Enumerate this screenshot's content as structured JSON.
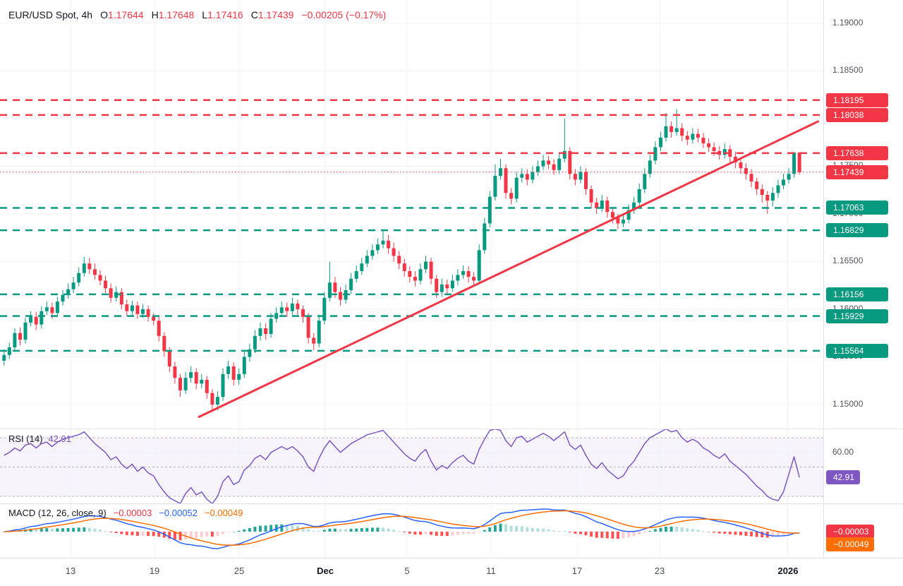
{
  "header": {
    "symbol": "EUR/USD Spot, 4h",
    "ohlc": [
      {
        "k": "O",
        "v": "1.17644"
      },
      {
        "k": "H",
        "v": "1.17648"
      },
      {
        "k": "L",
        "v": "1.17416"
      },
      {
        "k": "C",
        "v": "1.17439"
      }
    ],
    "change": "−0.00205 (−0.17%)"
  },
  "rsi_header": {
    "label": "RSI (14)",
    "value": "42.91"
  },
  "macd_header": {
    "label": "MACD (12, 26, close, 9)",
    "hist": "−0.00003",
    "macd": "−0.00052",
    "signal": "−0.00049"
  },
  "colors": {
    "up": "#089981",
    "down": "#F23645",
    "resistance": "#F23645",
    "support": "#089981",
    "trendline": "#F23645",
    "rsi": "#7E57C2",
    "macd": "#2962FF",
    "signal": "#FF6D00",
    "hist_up": "#26A69A",
    "hist_up_weak": "#B2DFDB",
    "hist_down": "#FF5252",
    "hist_down_weak": "#FFCDD2",
    "grid": "#F0F3FA",
    "band_line": "#9598A1"
  },
  "chart_data": {
    "type": "candlestick",
    "title": "EUR/USD Spot, 4h",
    "price_axis": {
      "grid": [
        1.19,
        1.185,
        1.18,
        1.175,
        1.17,
        1.165,
        1.16,
        1.155,
        1.15
      ],
      "labels": [
        {
          "text": "1.19000",
          "price": 1.19
        },
        {
          "text": "1.18500",
          "price": 1.185
        },
        {
          "text": "1.18000",
          "price": 1.18
        },
        {
          "text": "1.17500",
          "price": 1.175
        },
        {
          "text": "1.17000",
          "price": 1.17
        },
        {
          "text": "1.16500",
          "price": 1.165
        },
        {
          "text": "1.16000",
          "price": 1.16
        },
        {
          "text": "1.15500",
          "price": 1.155
        },
        {
          "text": "1.15000",
          "price": 1.15
        }
      ]
    },
    "levels": [
      {
        "text": "1.18195",
        "price": 1.18195,
        "type": "resistance"
      },
      {
        "text": "1.18038",
        "price": 1.18038,
        "type": "resistance"
      },
      {
        "text": "1.17638",
        "price": 1.17638,
        "type": "resistance"
      },
      {
        "text": "1.17439",
        "price": 1.17439,
        "type": "last-price"
      },
      {
        "text": "1.17063",
        "price": 1.17063,
        "type": "support"
      },
      {
        "text": "1.16829",
        "price": 1.16829,
        "type": "support"
      },
      {
        "text": "1.16156",
        "price": 1.16156,
        "type": "support"
      },
      {
        "text": "1.15929",
        "price": 1.15929,
        "type": "support"
      },
      {
        "text": "1.15564",
        "price": 1.15564,
        "type": "support"
      }
    ],
    "trendline": {
      "x1_index": 36.5,
      "price1": 1.1487,
      "x2_index": 152.5,
      "price2": 1.1797
    },
    "time_axis": [
      {
        "text": "13",
        "index": 12.5,
        "bold": false
      },
      {
        "text": "19",
        "index": 28.2,
        "bold": false
      },
      {
        "text": "25",
        "index": 44.0,
        "bold": false
      },
      {
        "text": "Dec",
        "index": 60.1,
        "bold": true
      },
      {
        "text": "5",
        "index": 75.5,
        "bold": false
      },
      {
        "text": "11",
        "index": 91.2,
        "bold": false
      },
      {
        "text": "17",
        "index": 107.4,
        "bold": false
      },
      {
        "text": "23",
        "index": 122.8,
        "bold": false
      },
      {
        "text": "2026",
        "index": 146.8,
        "bold": true
      }
    ],
    "candles": [
      [
        1.1546,
        1.1558,
        1.1541,
        1.1552
      ],
      [
        1.1552,
        1.1565,
        1.1548,
        1.156
      ],
      [
        1.156,
        1.158,
        1.1556,
        1.1575
      ],
      [
        1.1575,
        1.1581,
        1.1562,
        1.1568
      ],
      [
        1.1568,
        1.1591,
        1.1564,
        1.1586
      ],
      [
        1.1586,
        1.1598,
        1.1582,
        1.1592
      ],
      [
        1.1592,
        1.1597,
        1.1578,
        1.1584
      ],
      [
        1.1584,
        1.1603,
        1.158,
        1.1598
      ],
      [
        1.1598,
        1.1608,
        1.1594,
        1.1602
      ],
      [
        1.1602,
        1.1607,
        1.159,
        1.1596
      ],
      [
        1.1596,
        1.1613,
        1.1592,
        1.1608
      ],
      [
        1.1608,
        1.162,
        1.1604,
        1.1615
      ],
      [
        1.1615,
        1.1627,
        1.1611,
        1.1621
      ],
      [
        1.1621,
        1.1634,
        1.1617,
        1.1628
      ],
      [
        1.1628,
        1.1644,
        1.1624,
        1.1638
      ],
      [
        1.1638,
        1.1655,
        1.1634,
        1.1648
      ],
      [
        1.1648,
        1.1654,
        1.1637,
        1.1642
      ],
      [
        1.1642,
        1.1648,
        1.1631,
        1.1636
      ],
      [
        1.1636,
        1.1641,
        1.1625,
        1.163
      ],
      [
        1.163,
        1.1635,
        1.1617,
        1.1622
      ],
      [
        1.1622,
        1.1627,
        1.1607,
        1.1612
      ],
      [
        1.1612,
        1.1624,
        1.1608,
        1.1618
      ],
      [
        1.1618,
        1.1622,
        1.16,
        1.1605
      ],
      [
        1.1605,
        1.161,
        1.1593,
        1.1598
      ],
      [
        1.1598,
        1.1609,
        1.1594,
        1.1604
      ],
      [
        1.1604,
        1.1608,
        1.159,
        1.1595
      ],
      [
        1.1595,
        1.1605,
        1.1591,
        1.16
      ],
      [
        1.16,
        1.1604,
        1.1587,
        1.1592
      ],
      [
        1.1592,
        1.1596,
        1.1583,
        1.1588
      ],
      [
        1.1588,
        1.1592,
        1.1566,
        1.1572
      ],
      [
        1.1572,
        1.1576,
        1.155,
        1.1556
      ],
      [
        1.1556,
        1.156,
        1.1534,
        1.154
      ],
      [
        1.154,
        1.1545,
        1.1522,
        1.1528
      ],
      [
        1.1528,
        1.1532,
        1.1508,
        1.1515
      ],
      [
        1.1515,
        1.1534,
        1.1511,
        1.1528
      ],
      [
        1.1528,
        1.154,
        1.1523,
        1.1534
      ],
      [
        1.1534,
        1.1538,
        1.1516,
        1.1522
      ],
      [
        1.1522,
        1.1532,
        1.1517,
        1.1526
      ],
      [
        1.1526,
        1.153,
        1.1506,
        1.1512
      ],
      [
        1.1512,
        1.1516,
        1.1492,
        1.15
      ],
      [
        1.15,
        1.1514,
        1.1494,
        1.1508
      ],
      [
        1.1508,
        1.1538,
        1.1504,
        1.1532
      ],
      [
        1.1532,
        1.1546,
        1.1527,
        1.154
      ],
      [
        1.154,
        1.1544,
        1.152,
        1.1526
      ],
      [
        1.1526,
        1.1538,
        1.1521,
        1.1532
      ],
      [
        1.1532,
        1.1556,
        1.1528,
        1.155
      ],
      [
        1.155,
        1.1564,
        1.1545,
        1.1558
      ],
      [
        1.1558,
        1.1578,
        1.1554,
        1.1572
      ],
      [
        1.1572,
        1.1586,
        1.1567,
        1.158
      ],
      [
        1.158,
        1.1585,
        1.1568,
        1.1574
      ],
      [
        1.1574,
        1.1596,
        1.157,
        1.159
      ],
      [
        1.159,
        1.1602,
        1.1586,
        1.1596
      ],
      [
        1.1596,
        1.1608,
        1.1592,
        1.1602
      ],
      [
        1.1602,
        1.1607,
        1.1592,
        1.1598
      ],
      [
        1.1598,
        1.1612,
        1.1594,
        1.1606
      ],
      [
        1.1606,
        1.161,
        1.1594,
        1.16
      ],
      [
        1.16,
        1.1604,
        1.1586,
        1.1592
      ],
      [
        1.1592,
        1.1596,
        1.1564,
        1.157
      ],
      [
        1.157,
        1.1575,
        1.1557,
        1.1564
      ],
      [
        1.1564,
        1.1594,
        1.156,
        1.1588
      ],
      [
        1.1588,
        1.1618,
        1.1584,
        1.1612
      ],
      [
        1.1612,
        1.165,
        1.1608,
        1.1628
      ],
      [
        1.1628,
        1.1634,
        1.1612,
        1.1618
      ],
      [
        1.1618,
        1.1623,
        1.1604,
        1.161
      ],
      [
        1.161,
        1.1626,
        1.1606,
        1.162
      ],
      [
        1.162,
        1.1638,
        1.1616,
        1.1632
      ],
      [
        1.1632,
        1.1646,
        1.1628,
        1.164
      ],
      [
        1.164,
        1.1654,
        1.1636,
        1.1648
      ],
      [
        1.1648,
        1.1662,
        1.1644,
        1.1656
      ],
      [
        1.1656,
        1.1668,
        1.1652,
        1.1662
      ],
      [
        1.1662,
        1.1674,
        1.1658,
        1.1668
      ],
      [
        1.1668,
        1.1683,
        1.1664,
        1.1672
      ],
      [
        1.1672,
        1.1678,
        1.1658,
        1.1664
      ],
      [
        1.1664,
        1.167,
        1.165,
        1.1656
      ],
      [
        1.1656,
        1.1661,
        1.1642,
        1.1648
      ],
      [
        1.1648,
        1.1653,
        1.1634,
        1.164
      ],
      [
        1.164,
        1.1645,
        1.1628,
        1.1634
      ],
      [
        1.1634,
        1.164,
        1.1624,
        1.163
      ],
      [
        1.163,
        1.1648,
        1.1626,
        1.1642
      ],
      [
        1.1642,
        1.1656,
        1.1638,
        1.165
      ],
      [
        1.165,
        1.1654,
        1.1626,
        1.1632
      ],
      [
        1.1632,
        1.1636,
        1.1612,
        1.1618
      ],
      [
        1.1618,
        1.1632,
        1.1613,
        1.1626
      ],
      [
        1.1626,
        1.1631,
        1.1616,
        1.1622
      ],
      [
        1.1622,
        1.1636,
        1.1618,
        1.163
      ],
      [
        1.163,
        1.1642,
        1.1625,
        1.1636
      ],
      [
        1.1636,
        1.1646,
        1.1632,
        1.164
      ],
      [
        1.164,
        1.1645,
        1.1628,
        1.1634
      ],
      [
        1.1634,
        1.1639,
        1.1624,
        1.163
      ],
      [
        1.163,
        1.1668,
        1.1626,
        1.1662
      ],
      [
        1.1662,
        1.1696,
        1.1658,
        1.169
      ],
      [
        1.169,
        1.1724,
        1.1686,
        1.1718
      ],
      [
        1.1718,
        1.1752,
        1.1714,
        1.174
      ],
      [
        1.174,
        1.1758,
        1.1736,
        1.1748
      ],
      [
        1.1748,
        1.1752,
        1.1716,
        1.1722
      ],
      [
        1.1722,
        1.1727,
        1.171,
        1.1716
      ],
      [
        1.1716,
        1.1744,
        1.1712,
        1.1738
      ],
      [
        1.1738,
        1.1748,
        1.1733,
        1.1742
      ],
      [
        1.1742,
        1.1747,
        1.173,
        1.1736
      ],
      [
        1.1736,
        1.175,
        1.1732,
        1.1744
      ],
      [
        1.1744,
        1.1756,
        1.174,
        1.175
      ],
      [
        1.175,
        1.1762,
        1.1746,
        1.1756
      ],
      [
        1.1756,
        1.1761,
        1.1747,
        1.1752
      ],
      [
        1.1752,
        1.1757,
        1.1741,
        1.1746
      ],
      [
        1.1746,
        1.1764,
        1.1742,
        1.1758
      ],
      [
        1.1758,
        1.18,
        1.1754,
        1.1766
      ],
      [
        1.1766,
        1.177,
        1.1736,
        1.1742
      ],
      [
        1.1742,
        1.1747,
        1.173,
        1.1736
      ],
      [
        1.1736,
        1.175,
        1.1732,
        1.1744
      ],
      [
        1.1744,
        1.1748,
        1.172,
        1.1726
      ],
      [
        1.1726,
        1.173,
        1.1706,
        1.1712
      ],
      [
        1.1712,
        1.1717,
        1.17,
        1.1706
      ],
      [
        1.1706,
        1.172,
        1.1702,
        1.1714
      ],
      [
        1.1714,
        1.1718,
        1.1696,
        1.1702
      ],
      [
        1.1702,
        1.1707,
        1.169,
        1.1696
      ],
      [
        1.1696,
        1.17,
        1.1684,
        1.169
      ],
      [
        1.169,
        1.17,
        1.1686,
        1.1694
      ],
      [
        1.1694,
        1.171,
        1.169,
        1.1704
      ],
      [
        1.1704,
        1.1718,
        1.17,
        1.1712
      ],
      [
        1.1712,
        1.1732,
        1.1708,
        1.1726
      ],
      [
        1.1726,
        1.1748,
        1.1722,
        1.1742
      ],
      [
        1.1742,
        1.1762,
        1.1738,
        1.1756
      ],
      [
        1.1756,
        1.1776,
        1.1752,
        1.177
      ],
      [
        1.177,
        1.1786,
        1.1766,
        1.178
      ],
      [
        1.178,
        1.1806,
        1.1776,
        1.1792
      ],
      [
        1.1792,
        1.1797,
        1.178,
        1.1786
      ],
      [
        1.1786,
        1.181,
        1.1782,
        1.179
      ],
      [
        1.179,
        1.1795,
        1.1776,
        1.1782
      ],
      [
        1.1782,
        1.1787,
        1.1772,
        1.1778
      ],
      [
        1.1778,
        1.179,
        1.1774,
        1.1784
      ],
      [
        1.1784,
        1.1789,
        1.1775,
        1.178
      ],
      [
        1.178,
        1.1785,
        1.1769,
        1.1774
      ],
      [
        1.1774,
        1.1779,
        1.1765,
        1.177
      ],
      [
        1.177,
        1.1775,
        1.1761,
        1.1766
      ],
      [
        1.1766,
        1.1771,
        1.1757,
        1.1762
      ],
      [
        1.1762,
        1.1774,
        1.1758,
        1.1768
      ],
      [
        1.1768,
        1.1772,
        1.1754,
        1.176
      ],
      [
        1.176,
        1.1765,
        1.1748,
        1.1754
      ],
      [
        1.1754,
        1.1759,
        1.1742,
        1.1748
      ],
      [
        1.1748,
        1.1753,
        1.1736,
        1.1742
      ],
      [
        1.1742,
        1.1747,
        1.1728,
        1.1734
      ],
      [
        1.1734,
        1.1738,
        1.172,
        1.1726
      ],
      [
        1.1726,
        1.1731,
        1.1712,
        1.172
      ],
      [
        1.172,
        1.1724,
        1.17,
        1.1714
      ],
      [
        1.1714,
        1.1728,
        1.1708,
        1.1722
      ],
      [
        1.1722,
        1.1736,
        1.1717,
        1.173
      ],
      [
        1.173,
        1.1742,
        1.1726,
        1.1736
      ],
      [
        1.1736,
        1.1748,
        1.1732,
        1.1742
      ],
      [
        1.1742,
        1.1765,
        1.1738,
        1.17644
      ],
      [
        1.17644,
        1.17648,
        1.17416,
        1.17439
      ]
    ],
    "rsi": {
      "period": 14,
      "upper_band": 70,
      "middle_band": 50,
      "lower_band": 30,
      "axis_label": {
        "text": "60.00",
        "value": 60
      },
      "last": 42.91,
      "values": [
        58,
        60,
        63,
        61,
        65,
        66,
        63,
        66,
        67,
        64,
        67,
        69,
        70,
        71,
        72,
        74,
        70,
        66,
        63,
        60,
        55,
        57,
        52,
        49,
        52,
        47,
        50,
        46,
        44,
        38,
        33,
        29,
        27,
        25,
        32,
        36,
        31,
        33,
        28,
        25,
        30,
        40,
        44,
        38,
        40,
        48,
        51,
        56,
        58,
        55,
        60,
        62,
        64,
        62,
        64,
        61,
        57,
        50,
        47,
        56,
        63,
        68,
        64,
        60,
        63,
        66,
        68,
        70,
        72,
        73,
        74,
        75,
        71,
        67,
        63,
        59,
        56,
        54,
        59,
        62,
        54,
        48,
        51,
        49,
        53,
        56,
        58,
        54,
        52,
        62,
        69,
        75,
        76,
        75,
        68,
        64,
        70,
        71,
        67,
        69,
        71,
        73,
        71,
        68,
        71,
        74,
        65,
        62,
        65,
        58,
        52,
        49,
        53,
        48,
        45,
        42,
        44,
        50,
        54,
        60,
        66,
        70,
        72,
        74,
        76,
        74,
        75,
        70,
        67,
        69,
        67,
        63,
        61,
        58,
        56,
        59,
        54,
        51,
        48,
        45,
        41,
        37,
        34,
        30,
        28,
        27,
        33,
        45,
        57,
        42.91
      ]
    },
    "macd": {
      "fast": 12,
      "slow": 26,
      "source": "close",
      "smoothing": 9,
      "readout": {
        "hist": -3e-05,
        "macd": -0.00052,
        "signal": -0.00049
      },
      "axis_tags": [
        {
          "text": "−0.00003",
          "type": "hist"
        },
        {
          "text": "−0.00049",
          "type": "signal"
        }
      ]
    }
  }
}
